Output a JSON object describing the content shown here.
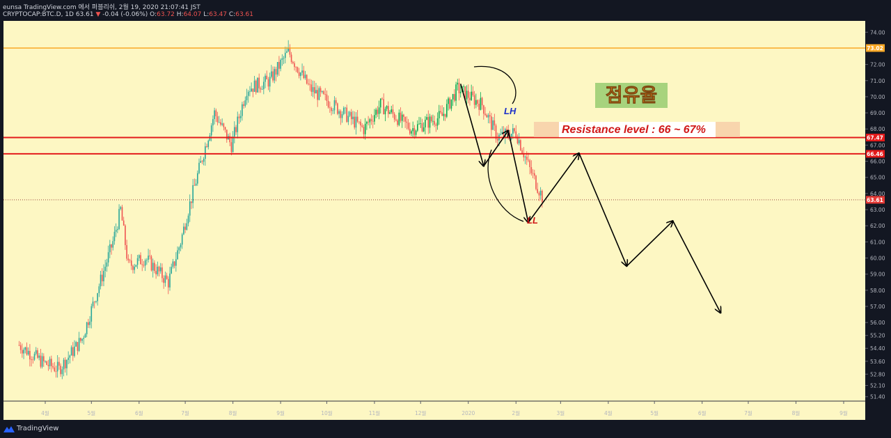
{
  "header": {
    "line1": "eunsa TradingView.com 에서 퍼블리쉬, 2월 19, 2020 21:07:41 JST",
    "symbol": "CRYPTOCAP:BTC.D, 1D 63.61",
    "change_arrow": "▼",
    "change": "-0.04 (-0.06%)",
    "o_label": "O:",
    "o_val": "63.72",
    "h_label": "H:",
    "h_val": "64.07",
    "l_label": "L:",
    "l_val": "63.47",
    "c_label": "C:",
    "c_val": "63.61"
  },
  "footer": {
    "brand": "TradingView"
  },
  "colors": {
    "plot_bg": "#fdf7c3",
    "up": "#26a69a",
    "up_bright": "#00a651",
    "down": "#ef5350",
    "resistance": "#e31b1b",
    "highline": "#f9a825",
    "last": "#e53935"
  },
  "annotations": {
    "title": "점유율",
    "resistance": "Resistance level : 66 ~ 67%",
    "lh": "LH",
    "ll": "LL"
  },
  "chart_data": {
    "type": "candlestick",
    "ylim": [
      51.0,
      74.4
    ],
    "y_ticks": [
      {
        "v": 74.0,
        "t": "74.00"
      },
      {
        "v": 73.02,
        "t": "73.02",
        "tag": "orange"
      },
      {
        "v": 72.0,
        "t": "72.00"
      },
      {
        "v": 71.0,
        "t": "71.00"
      },
      {
        "v": 70.0,
        "t": "70.00"
      },
      {
        "v": 69.0,
        "t": "69.00"
      },
      {
        "v": 68.0,
        "t": "68.00"
      },
      {
        "v": 67.47,
        "t": "67.47",
        "tag": "red"
      },
      {
        "v": 67.0,
        "t": "67.00"
      },
      {
        "v": 66.46,
        "t": "66.46",
        "tag": "red"
      },
      {
        "v": 66.0,
        "t": "66.00"
      },
      {
        "v": 65.0,
        "t": "65.00"
      },
      {
        "v": 64.0,
        "t": "64.00"
      },
      {
        "v": 63.61,
        "t": "63.61",
        "tag": "last"
      },
      {
        "v": 63.0,
        "t": "63.00"
      },
      {
        "v": 62.0,
        "t": "62.00"
      },
      {
        "v": 61.0,
        "t": "61.00"
      },
      {
        "v": 60.0,
        "t": "60.00"
      },
      {
        "v": 59.0,
        "t": "59.00"
      },
      {
        "v": 58.0,
        "t": "58.00"
      },
      {
        "v": 57.0,
        "t": "57.00"
      },
      {
        "v": 56.0,
        "t": "56.00"
      },
      {
        "v": 55.2,
        "t": "55.20"
      },
      {
        "v": 54.4,
        "t": "54.40"
      },
      {
        "v": 53.6,
        "t": "53.60"
      },
      {
        "v": 52.8,
        "t": "52.80"
      },
      {
        "v": 52.1,
        "t": "52.10"
      },
      {
        "v": 51.4,
        "t": "51.40"
      }
    ],
    "x_ticks": [
      "4월",
      "5월",
      "6월",
      "7월",
      "8월",
      "9월",
      "10월",
      "11월",
      "12월",
      "2020",
      "2월",
      "3월",
      "4월",
      "5월",
      "6월",
      "7월",
      "8월",
      "9월"
    ],
    "horizontal_levels": [
      {
        "name": "high",
        "value": 73.02
      },
      {
        "name": "resistance-upper",
        "value": 67.47
      },
      {
        "name": "resistance-lower",
        "value": 66.46
      },
      {
        "name": "last-price",
        "value": 63.61
      }
    ],
    "close_path_monthly": [
      [
        "2019-03-15",
        54.6
      ],
      [
        "2019-03-31",
        53.5
      ],
      [
        "2019-04-10",
        53.1
      ],
      [
        "2019-04-25",
        55.0
      ],
      [
        "2019-05-05",
        58.0
      ],
      [
        "2019-05-15",
        61.0
      ],
      [
        "2019-05-20",
        63.0
      ],
      [
        "2019-05-25",
        59.5
      ],
      [
        "2019-06-05",
        60.0
      ],
      [
        "2019-06-20",
        58.5
      ],
      [
        "2019-06-28",
        61.0
      ],
      [
        "2019-07-03",
        63.0
      ],
      [
        "2019-07-10",
        65.5
      ],
      [
        "2019-07-20",
        69.0
      ],
      [
        "2019-07-31",
        67.0
      ],
      [
        "2019-08-10",
        70.5
      ],
      [
        "2019-08-25",
        71.0
      ],
      [
        "2019-09-06",
        72.8
      ],
      [
        "2019-09-20",
        70.5
      ],
      [
        "2019-10-05",
        69.5
      ],
      [
        "2019-10-25",
        68.0
      ],
      [
        "2019-11-05",
        69.5
      ],
      [
        "2019-11-25",
        68.0
      ],
      [
        "2019-12-15",
        68.8
      ],
      [
        "2019-12-25",
        70.5
      ],
      [
        "2020-01-10",
        69.5
      ],
      [
        "2020-01-20",
        67.5
      ],
      [
        "2020-02-01",
        67.8
      ],
      [
        "2020-02-10",
        65.5
      ],
      [
        "2020-02-19",
        63.6
      ]
    ],
    "drawn_path_points": [
      [
        "2019-12-27",
        70.8
      ],
      [
        "2020-01-11",
        65.7
      ],
      [
        "2020-01-27",
        67.9
      ],
      [
        "2020-02-09",
        62.2
      ],
      [
        "2020-03-13",
        66.5
      ],
      [
        "2020-04-13",
        59.5
      ],
      [
        "2020-05-13",
        62.3
      ],
      [
        "2020-06-13",
        56.6
      ]
    ]
  }
}
